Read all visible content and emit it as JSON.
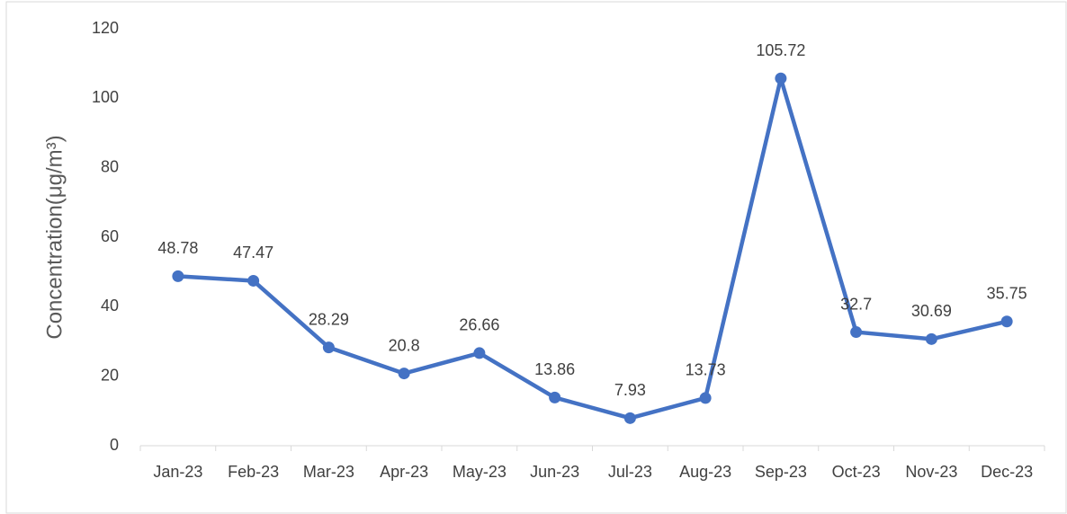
{
  "chart_data": {
    "type": "line",
    "y_label": "Concentration(μg/m³)",
    "categories": [
      "Jan-23",
      "Feb-23",
      "Mar-23",
      "Apr-23",
      "May-23",
      "Jun-23",
      "Jul-23",
      "Aug-23",
      "Sep-23",
      "Oct-23",
      "Nov-23",
      "Dec-23"
    ],
    "series": [
      {
        "name": "Concentration",
        "color": "#4472c4",
        "values": [
          48.78,
          47.47,
          28.29,
          20.8,
          26.66,
          13.86,
          7.93,
          13.73,
          105.72,
          32.7,
          30.69,
          35.75
        ]
      }
    ],
    "ylim": [
      0,
      120
    ],
    "yticks": [
      0,
      20,
      40,
      60,
      80,
      100,
      120
    ],
    "grid": false
  }
}
